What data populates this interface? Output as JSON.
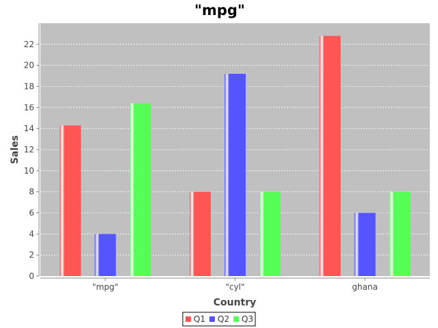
{
  "chart_data": {
    "type": "bar",
    "title": "\"mpg\"",
    "xlabel": "Country",
    "ylabel": "Sales",
    "categories": [
      "\"mpg\"",
      "\"cyl\"",
      "ghana"
    ],
    "series": [
      {
        "name": "Q1",
        "values": [
          14.3,
          8,
          22.8
        ],
        "color": "#ff5555"
      },
      {
        "name": "Q2",
        "values": [
          4,
          19.2,
          6
        ],
        "color": "#5555ff"
      },
      {
        "name": "Q3",
        "values": [
          16.4,
          8,
          8
        ],
        "color": "#55ff55"
      }
    ],
    "ylim": [
      0,
      24
    ],
    "yticks": [
      0,
      2,
      4,
      6,
      8,
      10,
      12,
      14,
      16,
      18,
      20,
      22
    ],
    "grid": true,
    "legend_position": "bottom",
    "plot_background": "#c0c0c0"
  }
}
